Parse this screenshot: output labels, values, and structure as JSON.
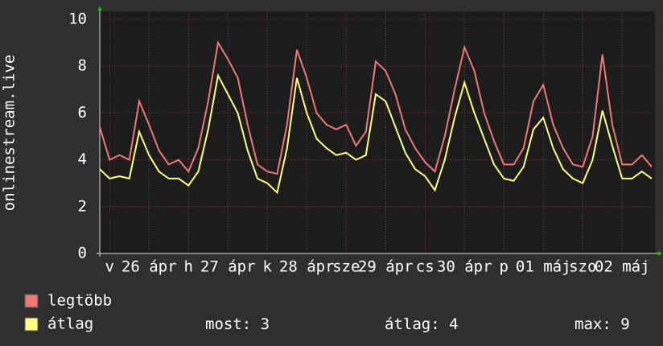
{
  "chart_data": {
    "type": "line",
    "ylabel": "onlinestream.live",
    "x": [
      0,
      3,
      6,
      9,
      12,
      15,
      18,
      21,
      24,
      27,
      30,
      33,
      36,
      39,
      42,
      45,
      48,
      51,
      54,
      57,
      60,
      63,
      66,
      69,
      72,
      75,
      78,
      81,
      84,
      87,
      90,
      93,
      96,
      99,
      102,
      105,
      108,
      111,
      114,
      117,
      120,
      123,
      126,
      129,
      132,
      135,
      138,
      141,
      144,
      147,
      150,
      153,
      156,
      159,
      162,
      165,
      168
    ],
    "series": [
      {
        "name": "legtöbb",
        "color": "#f07878",
        "values": [
          5.4,
          4.0,
          4.2,
          4.0,
          6.5,
          5.5,
          4.4,
          3.8,
          4.0,
          3.5,
          4.5,
          6.5,
          9.0,
          8.3,
          7.5,
          5.5,
          3.8,
          3.5,
          3.4,
          5.5,
          8.7,
          7.5,
          6.0,
          5.5,
          5.3,
          5.5,
          4.6,
          5.2,
          8.2,
          7.8,
          6.8,
          5.3,
          4.5,
          3.9,
          3.5,
          5.0,
          7.0,
          8.8,
          7.8,
          6.0,
          4.8,
          3.8,
          3.8,
          4.5,
          6.5,
          7.2,
          5.5,
          4.5,
          3.8,
          3.7,
          5.0,
          8.5,
          5.5,
          3.8,
          3.8,
          4.2,
          3.7
        ]
      },
      {
        "name": "átlag",
        "color": "#ffff80",
        "values": [
          3.6,
          3.2,
          3.3,
          3.2,
          5.2,
          4.2,
          3.5,
          3.2,
          3.2,
          2.9,
          3.5,
          5.3,
          7.6,
          6.8,
          6.0,
          4.4,
          3.2,
          3.0,
          2.6,
          4.5,
          7.5,
          6.0,
          4.9,
          4.5,
          4.2,
          4.3,
          4.0,
          4.2,
          6.8,
          6.5,
          5.4,
          4.3,
          3.6,
          3.3,
          2.7,
          4.0,
          5.8,
          7.3,
          6.0,
          4.9,
          3.8,
          3.2,
          3.1,
          3.7,
          5.3,
          5.8,
          4.5,
          3.6,
          3.2,
          3.0,
          4.0,
          6.1,
          4.6,
          3.2,
          3.2,
          3.5,
          3.2
        ]
      }
    ],
    "xlim": [
      0,
      168
    ],
    "xticks": [
      {
        "value": 3,
        "label": "v"
      },
      {
        "value": 15,
        "label": "26 ápr"
      },
      {
        "value": 27,
        "label": "h"
      },
      {
        "value": 39,
        "label": "27 ápr"
      },
      {
        "value": 51,
        "label": "k"
      },
      {
        "value": 63,
        "label": "28 ápr"
      },
      {
        "value": 75,
        "label": "sze"
      },
      {
        "value": 87,
        "label": "29 ápr"
      },
      {
        "value": 99,
        "label": "cs"
      },
      {
        "value": 111,
        "label": "30 ápr"
      },
      {
        "value": 123,
        "label": "p"
      },
      {
        "value": 135,
        "label": "01 máj"
      },
      {
        "value": 147,
        "label": "szo"
      },
      {
        "value": 159,
        "label": "02 máj"
      }
    ],
    "ylim": [
      0,
      10
    ],
    "yticks": [
      0,
      2,
      4,
      6,
      8,
      10
    ],
    "grid": true,
    "stats": [
      {
        "label": "most:",
        "value": 3
      },
      {
        "label": "átlag:",
        "value": 4
      },
      {
        "label": "max:",
        "value": 9
      }
    ]
  }
}
